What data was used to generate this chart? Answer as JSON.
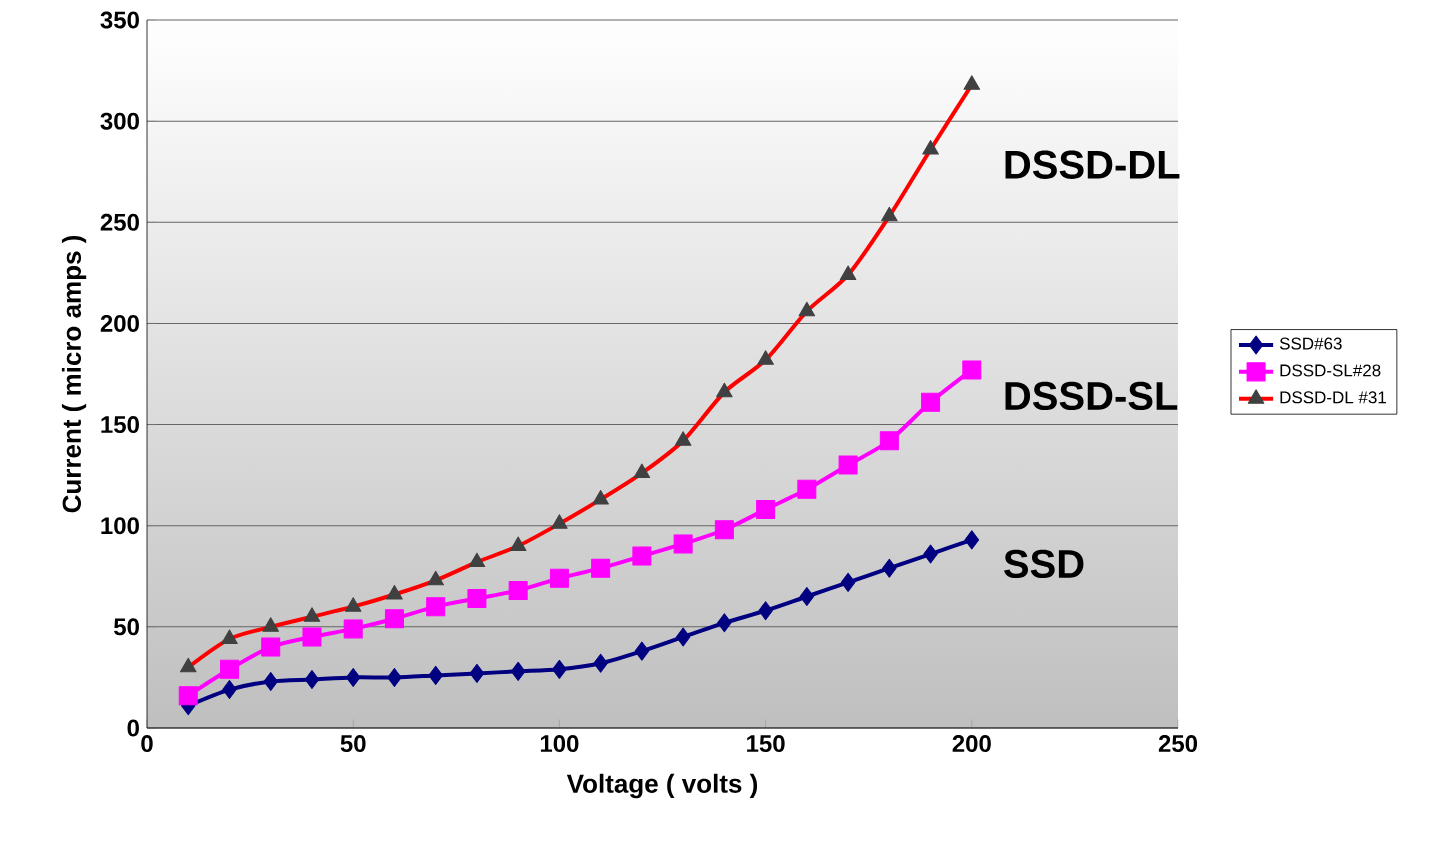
{
  "chart_data": {
    "type": "line",
    "xlabel": "Voltage ( volts )",
    "ylabel": "Current ( micro amps )",
    "x": [
      10,
      20,
      30,
      40,
      50,
      60,
      70,
      80,
      90,
      100,
      110,
      120,
      130,
      140,
      150,
      160,
      170,
      180,
      190,
      200
    ],
    "series": [
      {
        "name": "SSD#63",
        "color": "#000080",
        "marker": "diamond",
        "values": [
          11,
          19,
          23,
          24,
          25,
          25,
          26,
          27,
          28,
          29,
          32,
          38,
          45,
          52,
          58,
          65,
          72,
          79,
          86,
          93
        ]
      },
      {
        "name": "DSSD-SL#28",
        "color": "#ff00ff",
        "marker": "square",
        "values": [
          16,
          29,
          40,
          45,
          49,
          54,
          60,
          64,
          68,
          74,
          79,
          85,
          91,
          98,
          108,
          118,
          130,
          142,
          161,
          177
        ]
      },
      {
        "name": "DSSD-DL #31",
        "color": "#ff0000",
        "marker": "triangle",
        "values": [
          30,
          44,
          50,
          55,
          60,
          66,
          73,
          82,
          90,
          101,
          113,
          126,
          142,
          166,
          182,
          206,
          224,
          253,
          286,
          318
        ]
      }
    ],
    "annotations": [
      "SSD",
      "DSSD-SL",
      "DSSD-DL"
    ],
    "xlim": [
      0,
      250
    ],
    "ylim": [
      0,
      350
    ],
    "xticks": [
      0,
      50,
      100,
      150,
      200,
      250
    ],
    "yticks": [
      0,
      50,
      100,
      150,
      200,
      250,
      300,
      350
    ],
    "grid": "y",
    "legend": "right"
  }
}
